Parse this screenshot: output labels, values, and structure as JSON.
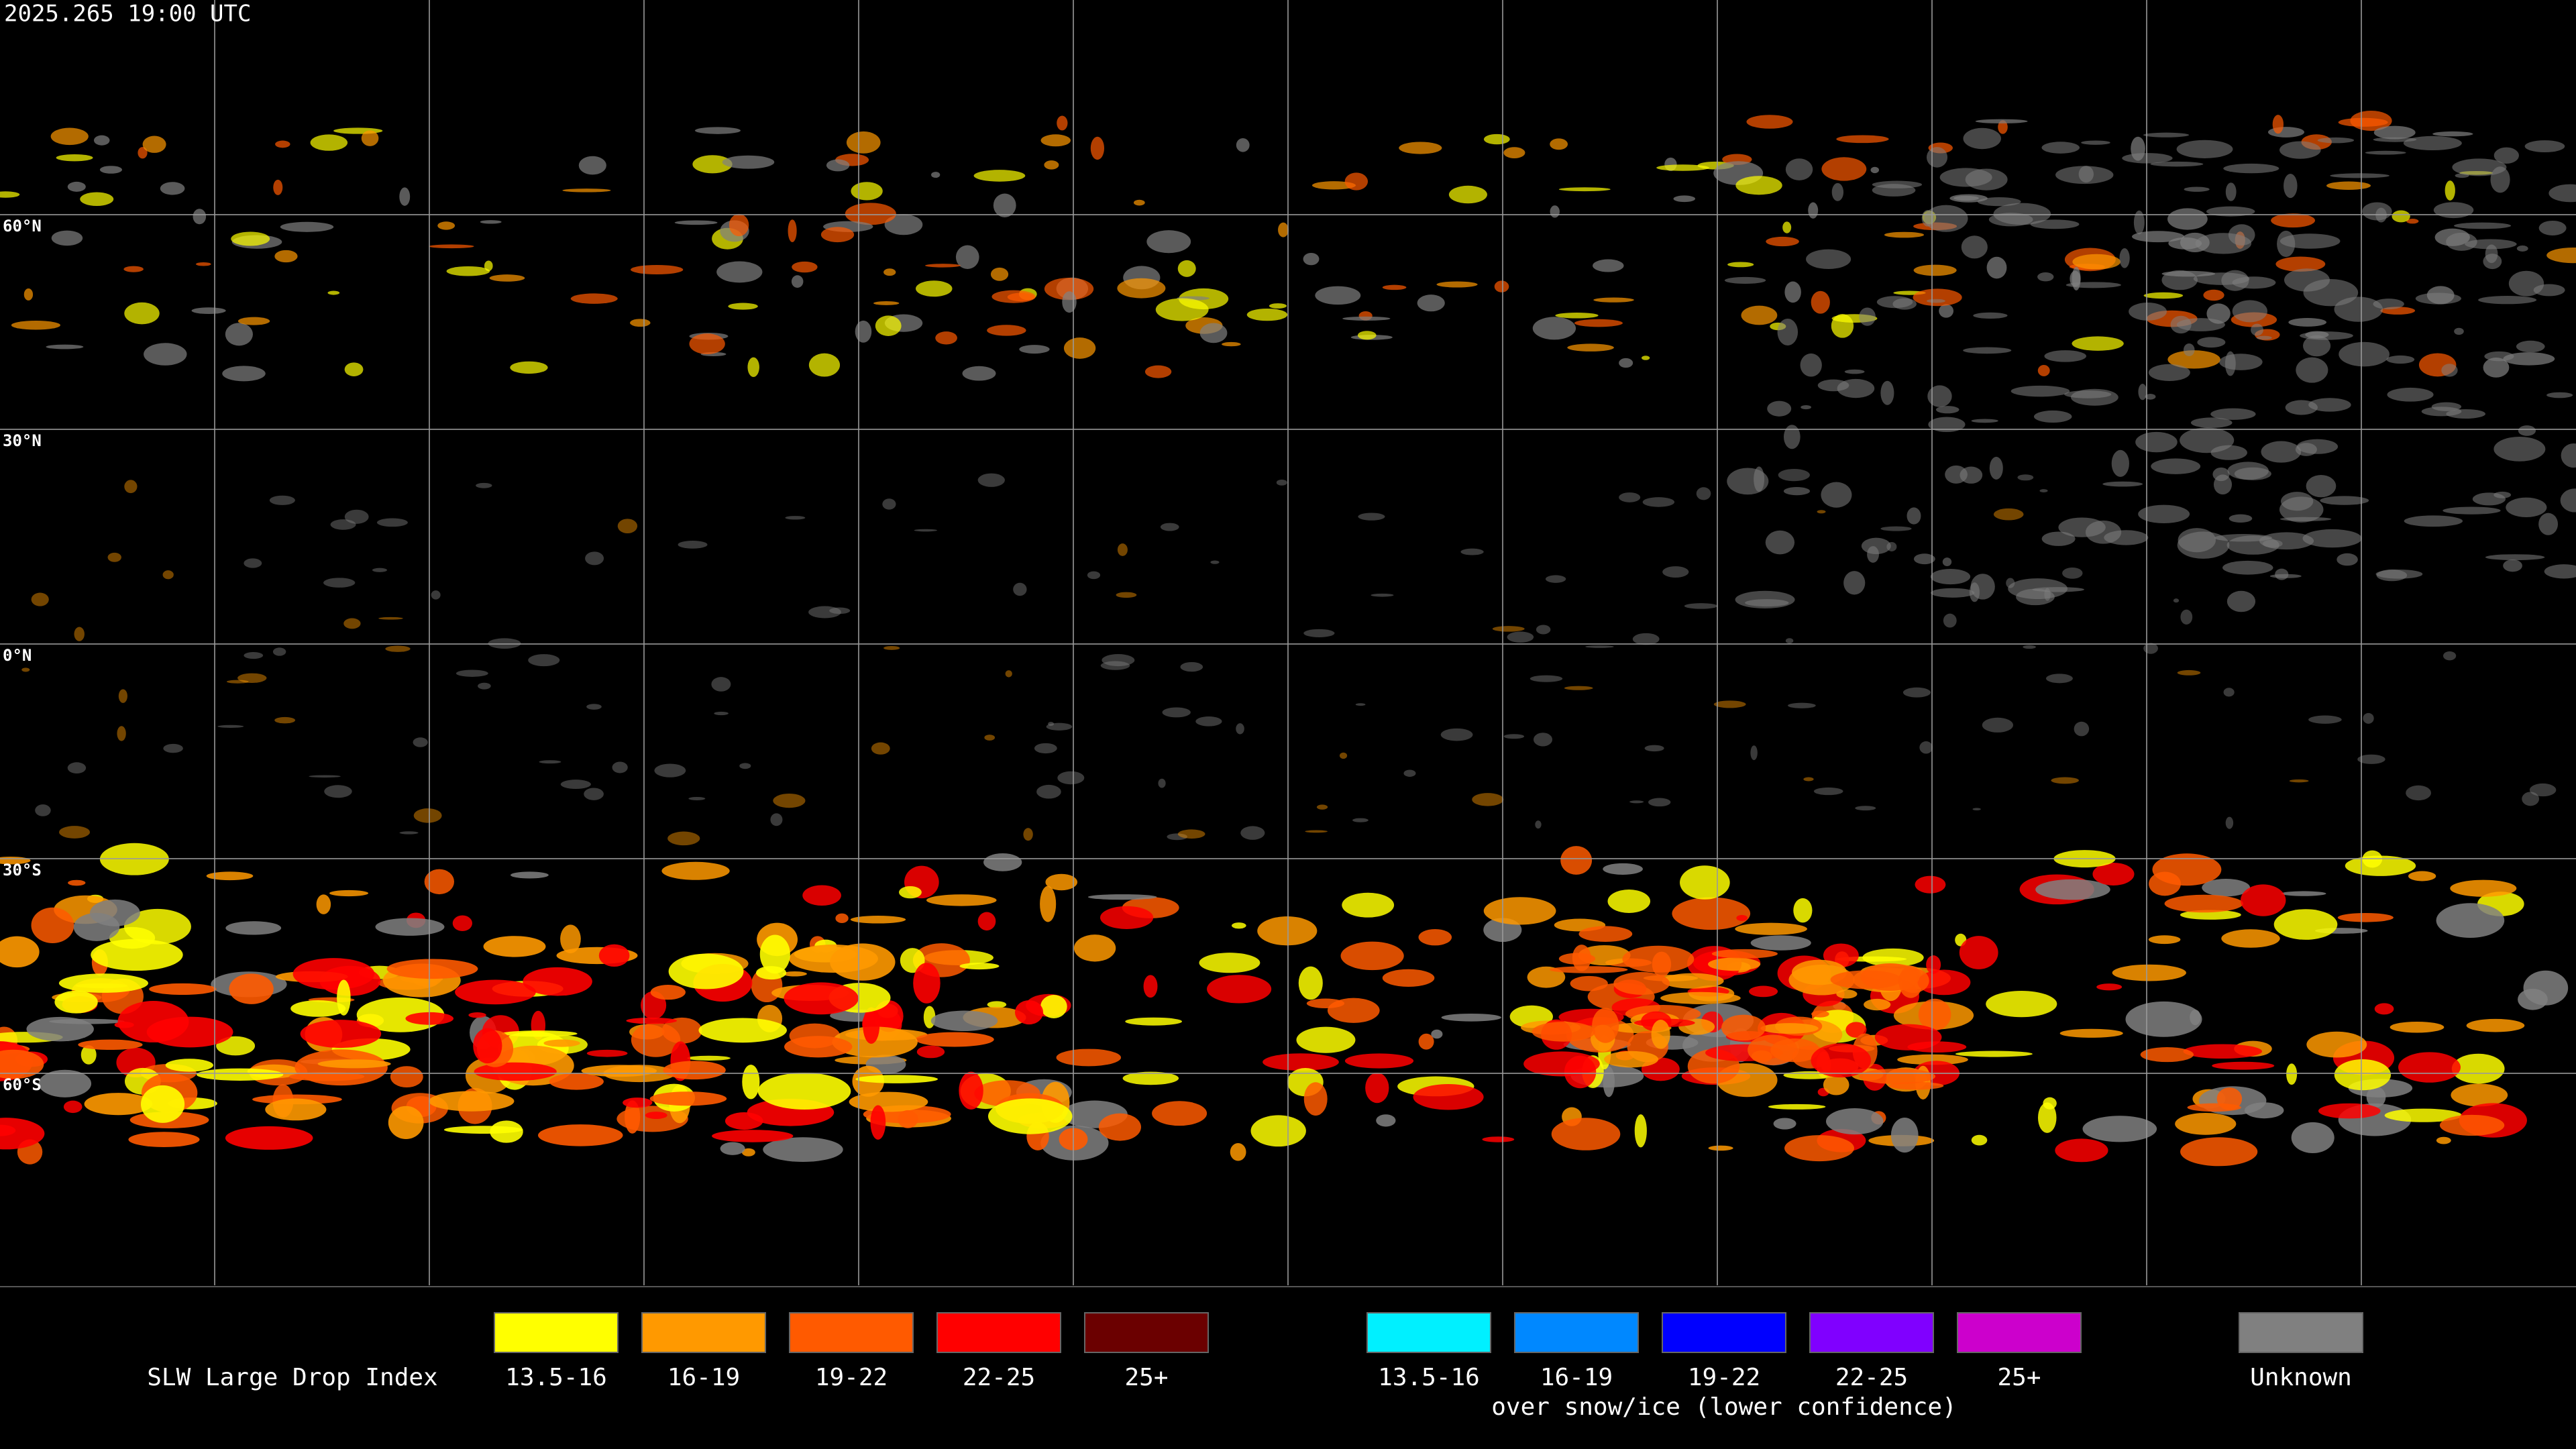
{
  "header": {
    "timestamp": "2025.265 19:00 UTC"
  },
  "map": {
    "latitude_labels": [
      "60°N",
      "30°N",
      "0°N",
      "30°S",
      "60°S"
    ]
  },
  "legend": {
    "title": "SLW Large Drop Index",
    "groups": [
      {
        "items": [
          {
            "label": "13.5-16",
            "color": "#ffff00"
          },
          {
            "label": "16-19",
            "color": "#ff9900"
          },
          {
            "label": "19-22",
            "color": "#ff5a00"
          },
          {
            "label": "22-25",
            "color": "#ff0000"
          },
          {
            "label": "25+",
            "color": "#6b0000"
          }
        ]
      },
      {
        "note": "over snow/ice (lower confidence)",
        "items": [
          {
            "label": "13.5-16",
            "color": "#00f0ff"
          },
          {
            "label": "16-19",
            "color": "#0088ff"
          },
          {
            "label": "19-22",
            "color": "#0000ff"
          },
          {
            "label": "22-25",
            "color": "#8000ff"
          },
          {
            "label": "25+",
            "color": "#cc00cc"
          }
        ]
      }
    ],
    "unknown": {
      "label": "Unknown",
      "color": "#808080"
    }
  }
}
